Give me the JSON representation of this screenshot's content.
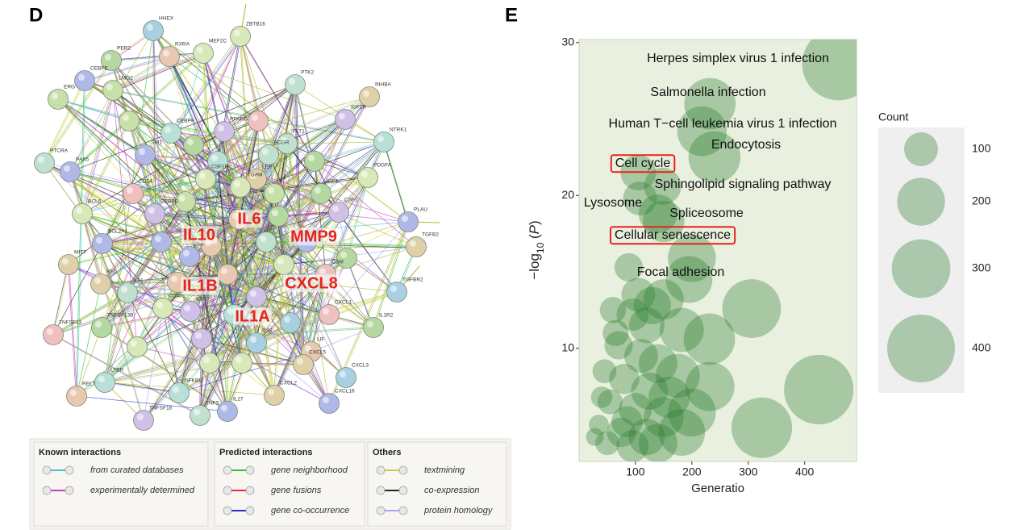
{
  "panels": {
    "left": "D",
    "right": "E"
  },
  "network": {
    "nodes": [
      "HHEX",
      "ZBTB16",
      "PER2",
      "RXRA",
      "MEF2C",
      "CEBPE",
      "ERG",
      "LMO2",
      "PTK2",
      "INHBA",
      "IGF1R",
      "CEBPA",
      "PPARG",
      "FLT1",
      "NTRK1",
      "PTCRA",
      "SPI1",
      "FCGR",
      "CSF1R",
      "LEP",
      "PDGFA",
      "PAX5",
      "CD14",
      "IGF1",
      "BCL6",
      "CEBPB",
      "ITGAM",
      "PLAU",
      "CSF1",
      "BCL2A1",
      "TNF",
      "TGFB2",
      "MITF",
      "REL",
      "IL21",
      "OSM",
      "TGFBR2",
      "CD40",
      "IL6ST",
      "CXCL1",
      "IL1R2",
      "TNFSF13",
      "TNFSF13B",
      "IL18",
      "LIF",
      "CXCL5",
      "CXCL3",
      "LTBR",
      "NFKBIZ",
      "CXCL2",
      "CXCL16",
      "RELT",
      "IL27",
      "TNFSF18",
      "TNFS"
    ],
    "hubs": [
      "IL10",
      "IL6",
      "MMP9",
      "IL1B",
      "CXCL8",
      "IL1A"
    ],
    "legend": [
      {
        "title": "Known interactions",
        "items": [
          {
            "label": "from curated databases",
            "color": "#3ec1d3"
          },
          {
            "label": "experimentally determined",
            "color": "#c43fc4"
          }
        ]
      },
      {
        "title": "Predicted interactions",
        "items": [
          {
            "label": "gene neighborhood",
            "color": "#2fc22f"
          },
          {
            "label": "gene fusions",
            "color": "#e03131"
          },
          {
            "label": "gene co-occurrence",
            "color": "#2431d0"
          }
        ]
      },
      {
        "title": "Others",
        "items": [
          {
            "label": "textmining",
            "color": "#c4d22e"
          },
          {
            "label": "co-expression",
            "color": "#222222"
          },
          {
            "label": "protein homology",
            "color": "#a3a3f5"
          }
        ]
      }
    ]
  },
  "chart_data": {
    "type": "scatter",
    "xlabel": "Generatio",
    "ylabel": [
      "−log",
      "10",
      " (",
      "P",
      ")"
    ],
    "xlim": [
      0,
      492
    ],
    "ylim": [
      2.6,
      30.2
    ],
    "xticks": [
      100,
      200,
      300,
      400
    ],
    "yticks": [
      10,
      20,
      30
    ],
    "color": "#2e7d32",
    "x": [
      460,
      232,
      218,
      240,
      105,
      148,
      108,
      140,
      150,
      200,
      425,
      324,
      306,
      231,
      232,
      195,
      182,
      175,
      200,
      182,
      150,
      88,
      60,
      95,
      120,
      70,
      110,
      140,
      45,
      80,
      125,
      55,
      100,
      150,
      35,
      75,
      120,
      50,
      95,
      140,
      65,
      105,
      40,
      85,
      160,
      130,
      28
    ],
    "values": [
      28.6,
      26,
      24.2,
      22.5,
      21.5,
      20.6,
      19.8,
      18.8,
      18.3,
      15.9,
      7.3,
      4.8,
      12.6,
      10.6,
      7.5,
      14.5,
      11.2,
      8.2,
      5.8,
      4.5,
      13.2,
      15.3,
      12.5,
      12.2,
      11.5,
      10.2,
      9.5,
      9.0,
      8.5,
      8.0,
      7.2,
      6.5,
      6.0,
      5.5,
      5.0,
      4.5,
      4.2,
      3.8,
      3.6,
      3.8,
      11.0,
      13.5,
      6.8,
      5.2,
      6.8,
      12.8,
      4.2
    ],
    "sizes": [
      460,
      230,
      215,
      235,
      110,
      120,
      100,
      130,
      150,
      200,
      420,
      320,
      300,
      230,
      210,
      190,
      170,
      170,
      200,
      190,
      140,
      70,
      60,
      90,
      110,
      70,
      100,
      130,
      50,
      80,
      120,
      55,
      95,
      140,
      35,
      75,
      115,
      50,
      90,
      130,
      60,
      100,
      40,
      85,
      150,
      120,
      28
    ],
    "point_labels": [
      "Herpes simplex virus 1 infection",
      "Salmonella infection",
      "Human T−cell leukemia virus 1 infection",
      "Endocytosis",
      "Cell cycle",
      "Sphingolipid signaling pathway",
      "Lysosome",
      "Spliceosome",
      "Cellular senescence",
      "Focal adhesion",
      null,
      null,
      null,
      null,
      null,
      null,
      null,
      null,
      null,
      null,
      null,
      null,
      null,
      null,
      null,
      null,
      null,
      null,
      null,
      null,
      null,
      null,
      null,
      null,
      null,
      null,
      null,
      null,
      null,
      null,
      null,
      null,
      null,
      null,
      null,
      null,
      null
    ],
    "highlighted_terms": [
      "Cell cycle",
      "Cellular senescence"
    ],
    "size_legend": {
      "title": "Count",
      "values": [
        100,
        200,
        300,
        400
      ]
    }
  }
}
